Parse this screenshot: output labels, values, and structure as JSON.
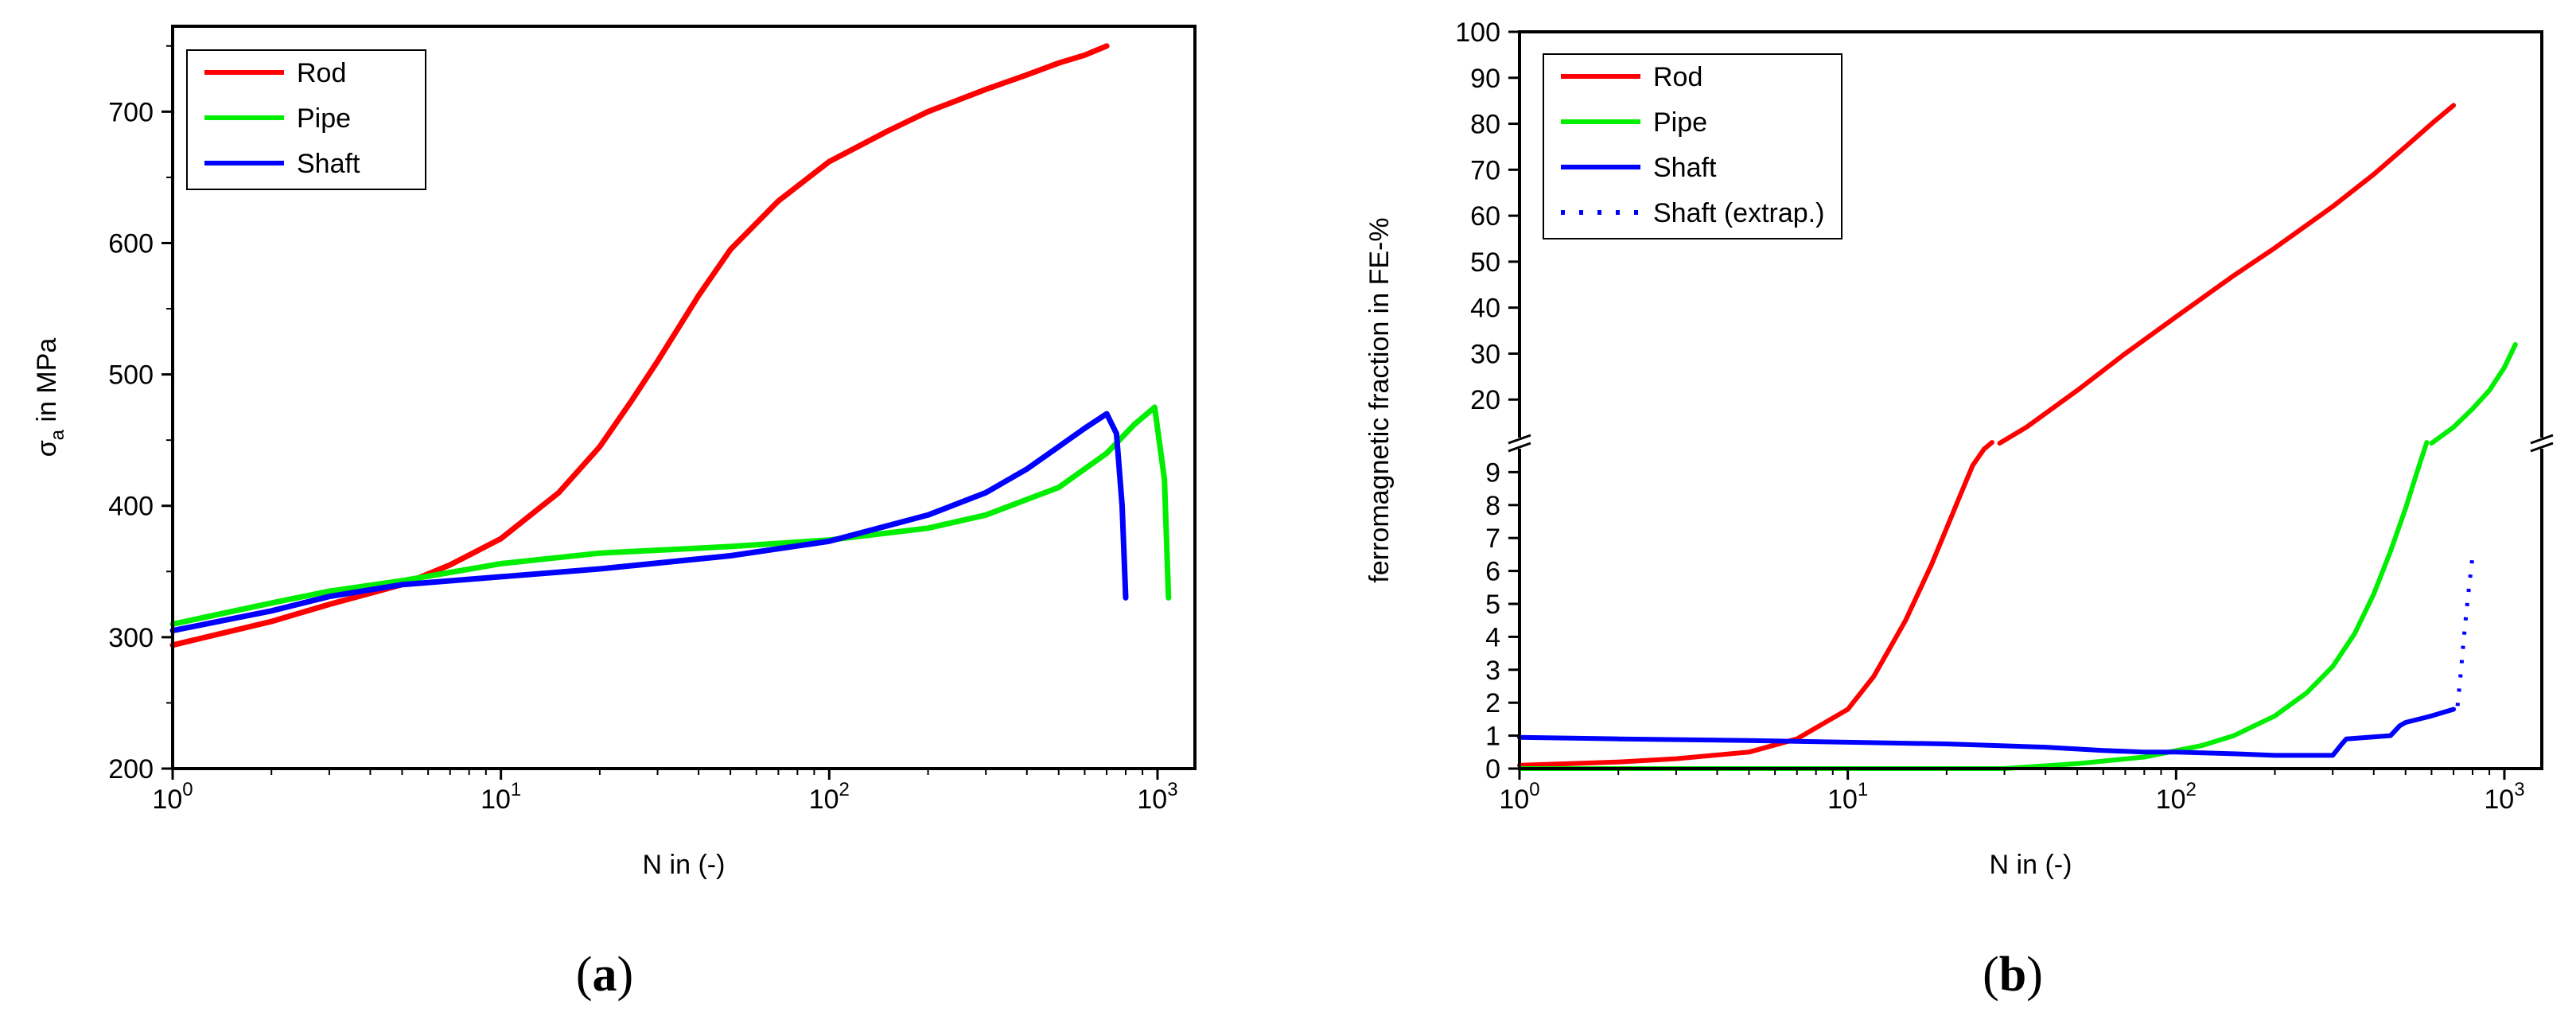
{
  "chart_data": [
    {
      "type": "line",
      "panel_label": "a",
      "xscale": "log",
      "xlim": [
        1,
        1300
      ],
      "ylim": [
        200,
        765
      ],
      "xlabel": "N in (-)",
      "ylabel_main": "σ",
      "ylabel_sub": "a",
      "ylabel_rest": " in MPa",
      "xticks": [
        {
          "value": 1,
          "base": "10",
          "exp": "0"
        },
        {
          "value": 10,
          "base": "10",
          "exp": "1"
        },
        {
          "value": 100,
          "base": "10",
          "exp": "2"
        },
        {
          "value": 1000,
          "base": "10",
          "exp": "3"
        }
      ],
      "yticks": [
        200,
        300,
        400,
        500,
        600,
        700
      ],
      "legend_position": "top-left",
      "series": [
        {
          "name": "Rod",
          "color": "#ff0000",
          "style": "solid",
          "x": [
            1,
            2,
            3,
            5,
            7,
            10,
            15,
            20,
            25,
            30,
            40,
            50,
            70,
            100,
            150,
            200,
            300,
            400,
            500,
            600,
            700
          ],
          "y": [
            294,
            312,
            325,
            340,
            355,
            375,
            410,
            445,
            480,
            510,
            560,
            595,
            632,
            662,
            685,
            700,
            717,
            728,
            737,
            743,
            750
          ]
        },
        {
          "name": "Pipe",
          "color": "#00ee00",
          "style": "solid",
          "x": [
            1,
            2,
            3,
            5,
            10,
            20,
            50,
            100,
            200,
            300,
            500,
            700,
            850,
            980,
            1050,
            1080
          ],
          "y": [
            310,
            326,
            335,
            343,
            356,
            364,
            369,
            374,
            383,
            393,
            414,
            440,
            462,
            475,
            420,
            330
          ]
        },
        {
          "name": "Shaft",
          "color": "#0000ff",
          "style": "solid",
          "x": [
            1,
            2,
            3,
            5,
            10,
            20,
            50,
            100,
            200,
            300,
            400,
            500,
            600,
            700,
            750,
            780,
            800
          ],
          "y": [
            305,
            320,
            331,
            340,
            346,
            352,
            362,
            373,
            393,
            410,
            428,
            445,
            459,
            470,
            455,
            400,
            330
          ]
        }
      ]
    },
    {
      "type": "line",
      "panel_label": "b",
      "xscale": "log",
      "xlim": [
        1,
        1300
      ],
      "ylim": [
        0,
        100
      ],
      "axis_break": {
        "lower_max": 10,
        "upper_min": 10
      },
      "xlabel": "N in (-)",
      "ylabel": "ferromagnetic fraction in FE-%",
      "xticks": [
        {
          "value": 1,
          "base": "10",
          "exp": "0"
        },
        {
          "value": 10,
          "base": "10",
          "exp": "1"
        },
        {
          "value": 100,
          "base": "10",
          "exp": "2"
        },
        {
          "value": 1000,
          "base": "10",
          "exp": "3"
        }
      ],
      "yticks_lower": [
        0,
        1,
        2,
        3,
        4,
        5,
        6,
        7,
        8,
        9
      ],
      "yticks_upper": [
        20,
        30,
        40,
        50,
        60,
        70,
        80,
        90,
        100
      ],
      "legend_position": "top-left",
      "series": [
        {
          "name": "Rod",
          "color": "#ff0000",
          "style": "solid",
          "segments": [
            {
              "x": [
                1,
                2,
                3,
                5,
                7,
                10,
                12,
                15,
                18,
                20,
                22,
                24,
                26,
                27.5
              ],
              "y": [
                0.1,
                0.2,
                0.3,
                0.5,
                0.9,
                1.8,
                2.8,
                4.5,
                6.2,
                7.3,
                8.3,
                9.2,
                9.7,
                9.9
              ]
            },
            {
              "x": [
                29,
                35,
                50,
                70,
                100,
                150,
                200,
                300,
                400,
                500,
                600,
                700
              ],
              "y": [
                10.5,
                14,
                22,
                30,
                38,
                47,
                53,
                62,
                69,
                75,
                80,
                84
              ]
            }
          ]
        },
        {
          "name": "Pipe",
          "color": "#00ee00",
          "style": "solid",
          "segments": [
            {
              "x": [
                1,
                10,
                30,
                50,
                80,
                120,
                150,
                200,
                250,
                300,
                350,
                400,
                450,
                500,
                550,
                580
              ],
              "y": [
                0,
                0,
                0,
                0.15,
                0.35,
                0.7,
                1.0,
                1.6,
                2.3,
                3.1,
                4.1,
                5.3,
                6.6,
                7.9,
                9.2,
                9.9
              ]
            },
            {
              "x": [
                600,
                700,
                800,
                900,
                1000,
                1080
              ],
              "y": [
                10.5,
                14,
                18,
                22,
                27,
                32
              ]
            }
          ]
        },
        {
          "name": "Shaft",
          "color": "#0000ff",
          "style": "solid",
          "segments": [
            {
              "x": [
                1,
                2,
                5,
                10,
                20,
                40,
                60,
                80,
                100,
                150,
                200,
                300,
                320,
                330,
                450,
                480,
                500,
                600,
                700
              ],
              "y": [
                0.95,
                0.9,
                0.85,
                0.8,
                0.75,
                0.65,
                0.55,
                0.5,
                0.5,
                0.45,
                0.4,
                0.4,
                0.75,
                0.9,
                1.0,
                1.3,
                1.4,
                1.6,
                1.8
              ]
            }
          ]
        },
        {
          "name": "Shaft (extrap.)",
          "color": "#0000ff",
          "style": "dotted",
          "segments": [
            {
              "x": [
                720,
                735,
                750,
                765,
                780,
                795,
                800
              ],
              "y": [
                1.9,
                2.8,
                3.8,
                4.7,
                5.5,
                6.2,
                6.5
              ]
            }
          ]
        }
      ]
    }
  ]
}
